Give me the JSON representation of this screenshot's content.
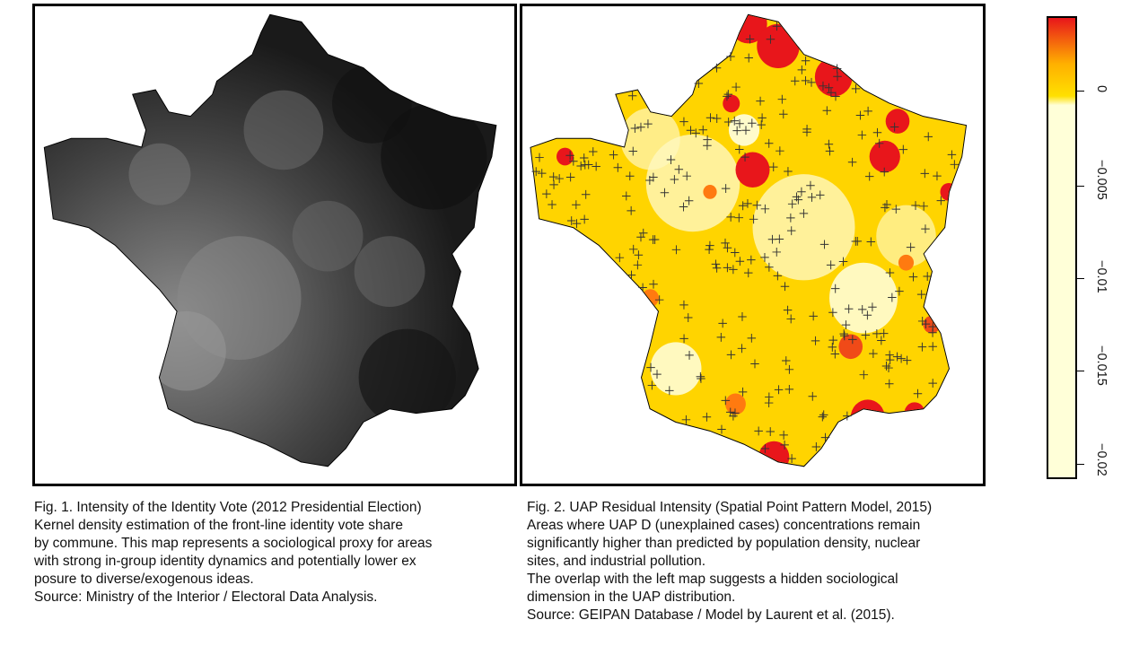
{
  "figure1": {
    "caption_lines": [
      "Fig. 1. Intensity of the Identity Vote (2012 Presidential Election)",
      "Kernel density estimation of the front-line identity vote share",
      "by commune. This map represents a sociological proxy for areas",
      "with strong in-group identity dynamics and potentially lower ex",
      "posure to diverse/exogenous ideas.",
      "Source: Ministry of the Interior / Electoral Data Analysis."
    ],
    "colors": {
      "dark": "#111111",
      "light": "#b8b8b8"
    }
  },
  "figure2": {
    "caption_lines": [
      "Fig. 2. UAP Residual Intensity (Spatial Point Pattern Model, 2015)",
      "Areas where UAP D (unexplained cases) concentrations remain",
      "significantly higher than predicted by population density, nuclear",
      "sites, and industrial pollution.",
      "The overlap with the left map suggests a hidden sociological",
      "dimension in the UAP distribution.",
      "Source: GEIPAN Database / Model by Laurent et al. (2015)."
    ],
    "colors": {
      "high": "#e8161b",
      "mid": "#ffcc00",
      "low": "#ffffe0"
    }
  },
  "legend": {
    "ticks": [
      "0",
      "−0.005",
      "−0.01",
      "−0.015",
      "−0.02"
    ],
    "colors": {
      "top": "#e8161b",
      "mid": "#ffb000",
      "zero": "#ffe000",
      "bottom": "#ffffd8"
    }
  }
}
